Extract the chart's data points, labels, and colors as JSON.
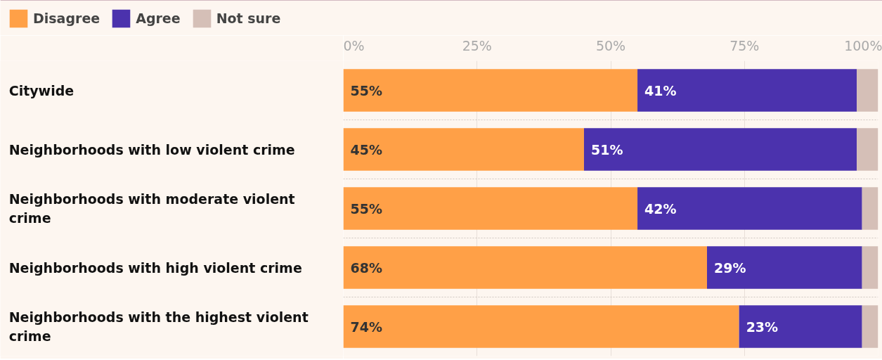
{
  "chart_data": {
    "type": "bar",
    "orientation": "horizontal",
    "stacked": true,
    "categories": [
      "Citywide",
      "Neighborhoods with low violent crime",
      "Neighborhoods with moderate violent crime",
      "Neighborhoods with high violent crime",
      "Neighborhoods with the highest violent crime"
    ],
    "series": [
      {
        "name": "Disagree",
        "color": "#ffa047",
        "values": [
          55,
          45,
          55,
          68,
          74
        ],
        "value_labels": [
          "55%",
          "45%",
          "55%",
          "68%",
          "74%"
        ]
      },
      {
        "name": "Agree",
        "color": "#4b32ad",
        "values": [
          41,
          51,
          42,
          29,
          23
        ],
        "value_labels": [
          "41%",
          "51%",
          "42%",
          "29%",
          "23%"
        ]
      },
      {
        "name": "Not sure",
        "color": "#d5bfb7",
        "values": [
          4,
          4,
          3,
          3,
          3
        ]
      }
    ],
    "xlim": [
      0,
      100
    ],
    "xticks": [
      {
        "value": 0,
        "label": "0%"
      },
      {
        "value": 25,
        "label": "25%"
      },
      {
        "value": 50,
        "label": "50%"
      },
      {
        "value": 75,
        "label": "75%"
      },
      {
        "value": 100,
        "label": "100%"
      }
    ],
    "grid": true,
    "legend": "top left"
  }
}
